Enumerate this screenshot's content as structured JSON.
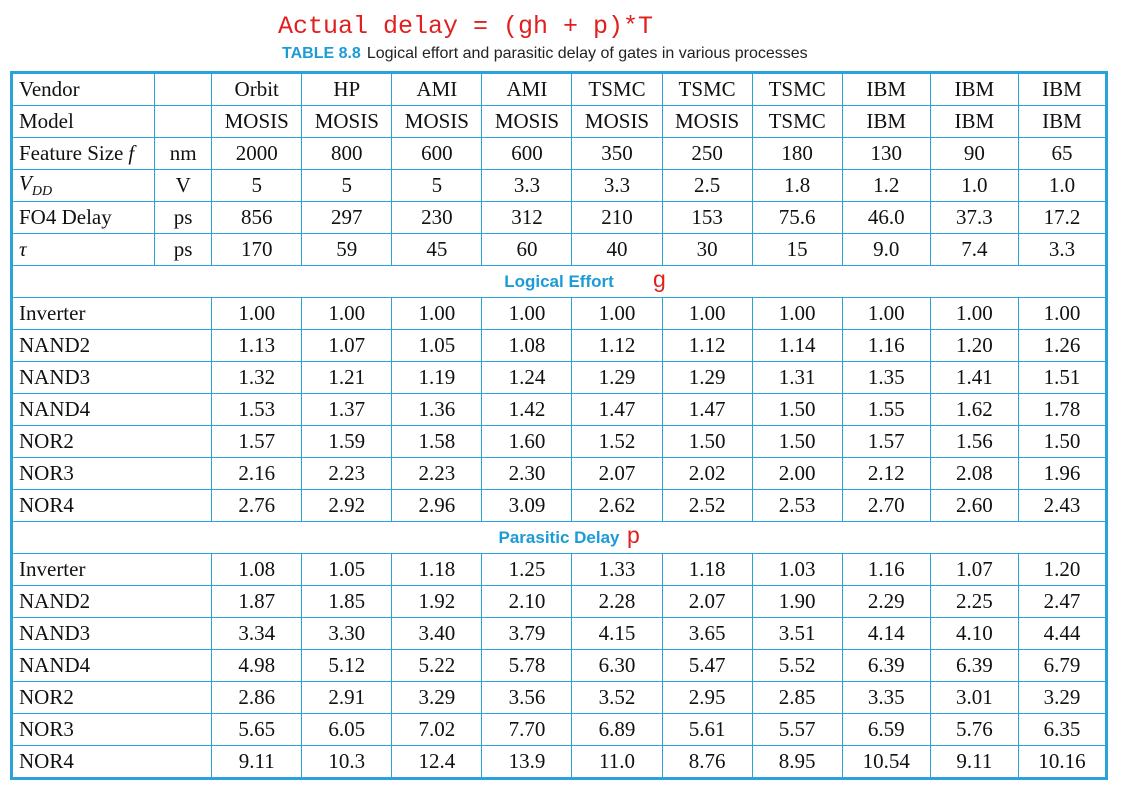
{
  "annotation": "Actual delay = (gh + p)*T",
  "caption": {
    "label": "TABLE 8.8",
    "text": "Logical effort and parasitic delay of gates in various processes"
  },
  "table": {
    "header_rows": [
      {
        "label": "Vendor",
        "cells": [
          "Orbit",
          "HP",
          "AMI",
          "AMI",
          "TSMC",
          "TSMC",
          "TSMC",
          "IBM",
          "IBM",
          "IBM"
        ]
      },
      {
        "label": "Model",
        "cells": [
          "MOSIS",
          "MOSIS",
          "MOSIS",
          "MOSIS",
          "MOSIS",
          "MOSIS",
          "TSMC",
          "IBM",
          "IBM",
          "IBM"
        ]
      },
      {
        "label": "Feature Size",
        "label_italic": "f",
        "unit": "nm",
        "cells": [
          "2000",
          "800",
          "600",
          "600",
          "350",
          "250",
          "180",
          "130",
          "90",
          "65"
        ]
      },
      {
        "label": "V",
        "label_sub": "DD",
        "unit": "V",
        "cells": [
          "5",
          "5",
          "5",
          "3.3",
          "3.3",
          "2.5",
          "1.8",
          "1.2",
          "1.0",
          "1.0"
        ]
      },
      {
        "label": "FO4 Delay",
        "unit": "ps",
        "cells": [
          "856",
          "297",
          "230",
          "312",
          "210",
          "153",
          "75.6",
          "46.0",
          "37.3",
          "17.2"
        ]
      },
      {
        "label_italic": "τ",
        "unit": "ps",
        "cells": [
          "170",
          "59",
          "45",
          "60",
          "40",
          "30",
          "15",
          "9.0",
          "7.4",
          "3.3"
        ]
      }
    ],
    "sections": [
      {
        "title": "Logical Effort",
        "symbol": "g",
        "rows": [
          {
            "label": "Inverter",
            "cells": [
              "1.00",
              "1.00",
              "1.00",
              "1.00",
              "1.00",
              "1.00",
              "1.00",
              "1.00",
              "1.00",
              "1.00"
            ]
          },
          {
            "label": "NAND2",
            "cells": [
              "1.13",
              "1.07",
              "1.05",
              "1.08",
              "1.12",
              "1.12",
              "1.14",
              "1.16",
              "1.20",
              "1.26"
            ]
          },
          {
            "label": "NAND3",
            "cells": [
              "1.32",
              "1.21",
              "1.19",
              "1.24",
              "1.29",
              "1.29",
              "1.31",
              "1.35",
              "1.41",
              "1.51"
            ]
          },
          {
            "label": "NAND4",
            "cells": [
              "1.53",
              "1.37",
              "1.36",
              "1.42",
              "1.47",
              "1.47",
              "1.50",
              "1.55",
              "1.62",
              "1.78"
            ]
          },
          {
            "label": "NOR2",
            "cells": [
              "1.57",
              "1.59",
              "1.58",
              "1.60",
              "1.52",
              "1.50",
              "1.50",
              "1.57",
              "1.56",
              "1.50"
            ]
          },
          {
            "label": "NOR3",
            "cells": [
              "2.16",
              "2.23",
              "2.23",
              "2.30",
              "2.07",
              "2.02",
              "2.00",
              "2.12",
              "2.08",
              "1.96"
            ]
          },
          {
            "label": "NOR4",
            "cells": [
              "2.76",
              "2.92",
              "2.96",
              "3.09",
              "2.62",
              "2.52",
              "2.53",
              "2.70",
              "2.60",
              "2.43"
            ]
          }
        ]
      },
      {
        "title": "Parasitic Delay",
        "symbol": "p",
        "rows": [
          {
            "label": "Inverter",
            "cells": [
              "1.08",
              "1.05",
              "1.18",
              "1.25",
              "1.33",
              "1.18",
              "1.03",
              "1.16",
              "1.07",
              "1.20"
            ]
          },
          {
            "label": "NAND2",
            "cells": [
              "1.87",
              "1.85",
              "1.92",
              "2.10",
              "2.28",
              "2.07",
              "1.90",
              "2.29",
              "2.25",
              "2.47"
            ]
          },
          {
            "label": "NAND3",
            "cells": [
              "3.34",
              "3.30",
              "3.40",
              "3.79",
              "4.15",
              "3.65",
              "3.51",
              "4.14",
              "4.10",
              "4.44"
            ]
          },
          {
            "label": "NAND4",
            "cells": [
              "4.98",
              "5.12",
              "5.22",
              "5.78",
              "6.30",
              "5.47",
              "5.52",
              "6.39",
              "6.39",
              "6.79"
            ]
          },
          {
            "label": "NOR2",
            "cells": [
              "2.86",
              "2.91",
              "3.29",
              "3.56",
              "3.52",
              "2.95",
              "2.85",
              "3.35",
              "3.01",
              "3.29"
            ]
          },
          {
            "label": "NOR3",
            "cells": [
              "5.65",
              "6.05",
              "7.02",
              "7.70",
              "6.89",
              "5.61",
              "5.57",
              "6.59",
              "5.76",
              "6.35"
            ]
          },
          {
            "label": "NOR4",
            "cells": [
              "9.11",
              "10.3",
              "12.4",
              "13.9",
              "11.0",
              "8.76",
              "8.95",
              "10.54",
              "9.11",
              "10.16"
            ]
          }
        ]
      }
    ]
  }
}
